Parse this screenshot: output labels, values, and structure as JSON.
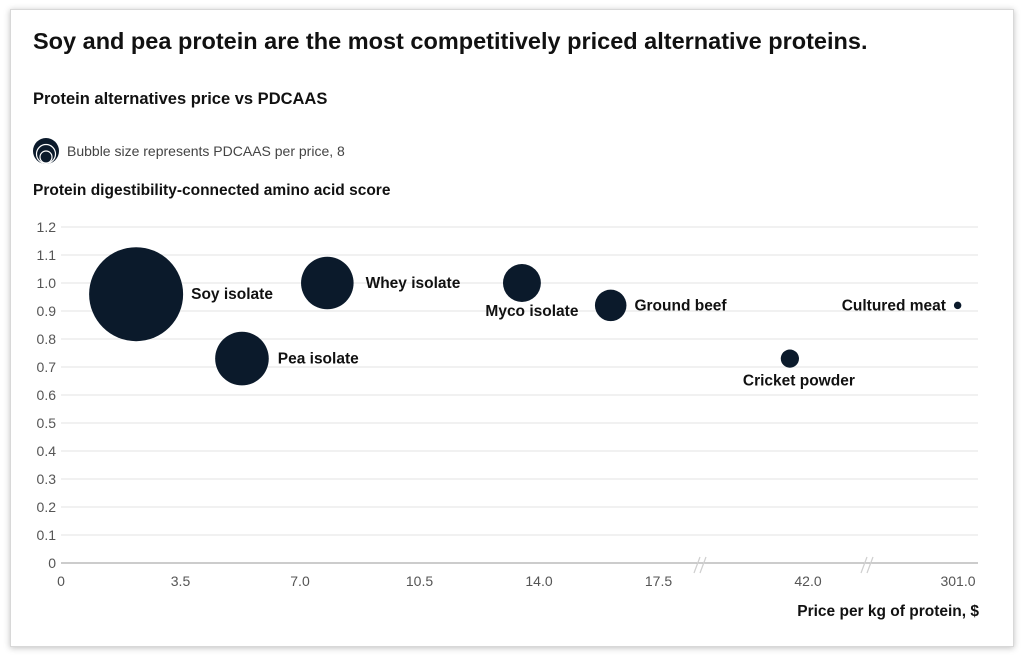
{
  "headline": "Soy and pea protein are the most competitively priced alternative proteins.",
  "subtitle": "Protein alternatives price vs PDCAAS",
  "legend_text": "Bubble size represents PDCAAS per price, 8",
  "colors": {
    "bubble": "#0b1a2b",
    "grid": "#e3e3e3",
    "axis": "#9a9a9a"
  },
  "chart_data": {
    "type": "scatter",
    "title": "Protein alternatives price vs PDCAAS",
    "ylabel": "Protein digestibility-connected amino acid score",
    "xlabel": "Price per kg of protein, $",
    "ylim": [
      0,
      1.2
    ],
    "y_ticks": [
      "0",
      "0.1",
      "0.2",
      "0.3",
      "0.4",
      "0.5",
      "0.6",
      "0.7",
      "0.8",
      "0.9",
      "1.0",
      "1.1",
      "1.2"
    ],
    "x_ticks": [
      "0",
      "3.5",
      "7.0",
      "10.5",
      "14.0",
      "17.5",
      "42.0",
      "301.0"
    ],
    "x_axis_note": "broken axis between 17.5 and 42.0, and between 42.0 and 301.0",
    "grid": true,
    "points": [
      {
        "label": "Soy isolate",
        "x": 2.2,
        "y": 0.96,
        "size": 8
      },
      {
        "label": "Pea isolate",
        "x": 5.3,
        "y": 0.73,
        "size": 2.6
      },
      {
        "label": "Whey isolate",
        "x": 7.8,
        "y": 1.0,
        "size": 2.5
      },
      {
        "label": "Myco isolate",
        "x": 13.5,
        "y": 1.0,
        "size": 1.3
      },
      {
        "label": "Ground beef",
        "x": 16.1,
        "y": 0.92,
        "size": 0.9
      },
      {
        "label": "Cricket powder",
        "x": 38.0,
        "y": 0.73,
        "size": 0.3
      },
      {
        "label": "Cultured meat",
        "x": 300.0,
        "y": 0.92,
        "size": 0.05
      }
    ]
  }
}
